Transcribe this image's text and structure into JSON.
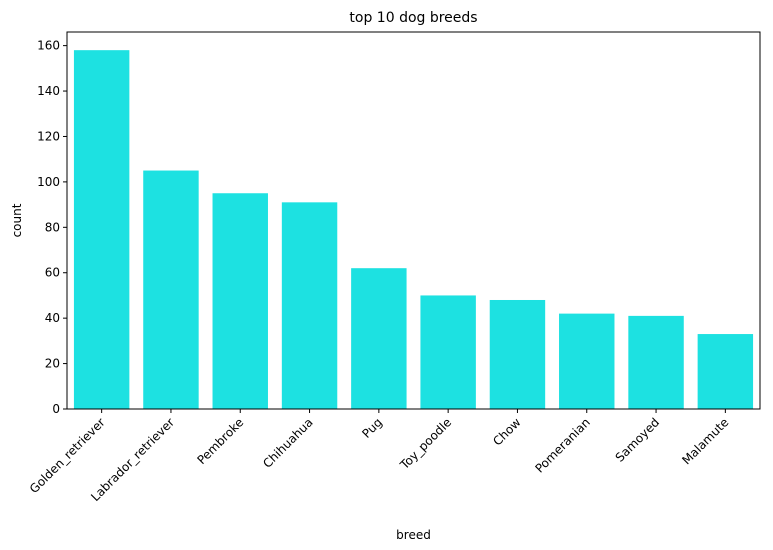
{
  "chart_data": {
    "type": "bar",
    "title": "top 10 dog breeds",
    "xlabel": "breed",
    "ylabel": "count",
    "categories": [
      "Golden_retriever",
      "Labrador_retriever",
      "Pembroke",
      "Chihuahua",
      "Pug",
      "Toy_poodle",
      "Chow",
      "Pomeranian",
      "Samoyed",
      "Malamute"
    ],
    "values": [
      158,
      105,
      95,
      91,
      62,
      50,
      48,
      42,
      41,
      33
    ],
    "ylim": [
      0,
      166
    ],
    "yticks": [
      "0",
      "20",
      "40",
      "60",
      "80",
      "100",
      "120",
      "140",
      "160"
    ],
    "bar_color": "#1de1e1",
    "grid": false,
    "legend": "none"
  }
}
